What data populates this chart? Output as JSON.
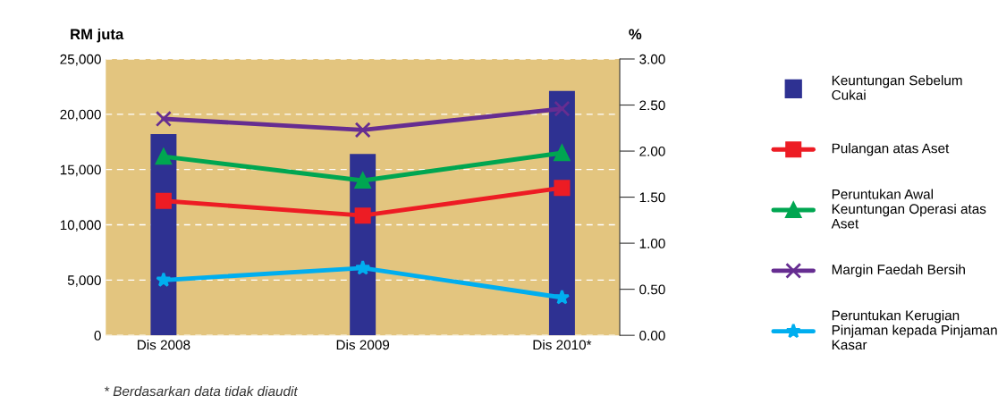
{
  "chart_data": {
    "type": "bar",
    "ylabel": "RM juta",
    "y2label": "%",
    "categories": [
      "Dis 2008",
      "Dis 2009",
      "Dis 2010*"
    ],
    "series": [
      {
        "name": "Keuntungan Sebelum Cukai",
        "color": "#2e3192",
        "values": [
          18200,
          16400,
          22100
        ]
      },
      {
        "name": "Pulangan atas Aset",
        "type": "line",
        "axis": "y2",
        "color": "#ed1c24",
        "marker": "square",
        "values": [
          1.46,
          1.3,
          1.6
        ]
      },
      {
        "name": "Peruntukan Awal Keuntungan Operasi atas Aset",
        "type": "line",
        "axis": "y2",
        "color": "#00a651",
        "marker": "triangle",
        "values": [
          1.94,
          1.68,
          1.98
        ]
      },
      {
        "name": "Margin Faedah Bersih",
        "type": "line",
        "axis": "y2",
        "color": "#662d91",
        "marker": "cross",
        "values": [
          2.35,
          2.23,
          2.46
        ]
      },
      {
        "name": "Peruntukan Kerugian Pinjaman kepada Pinjaman Kasar",
        "type": "line",
        "axis": "y2",
        "color": "#00aeef",
        "marker": "star",
        "values": [
          0.6,
          0.73,
          0.41
        ]
      }
    ],
    "ylim": [
      0,
      25000
    ],
    "yticks": [
      {
        "value": 0,
        "label": "0"
      },
      {
        "value": 5000,
        "label": "5,000"
      },
      {
        "value": 10000,
        "label": "10,000"
      },
      {
        "value": 15000,
        "label": "15,000"
      },
      {
        "value": 20000,
        "label": "20,000"
      },
      {
        "value": 25000,
        "label": "25,000"
      }
    ],
    "y2lim": [
      0,
      3
    ],
    "y2ticks": [
      {
        "value": 0,
        "label": "0.00"
      },
      {
        "value": 0.5,
        "label": "0.50"
      },
      {
        "value": 1,
        "label": "1.00"
      },
      {
        "value": 1.5,
        "label": "1.50"
      },
      {
        "value": 2,
        "label": "2.00"
      },
      {
        "value": 2.5,
        "label": "2.50"
      },
      {
        "value": 3,
        "label": "3.00"
      }
    ],
    "grid": "y",
    "legend": "right",
    "line_style": "solid",
    "annotations": [
      "* Berdasarkan data tidak diaudit"
    ]
  }
}
